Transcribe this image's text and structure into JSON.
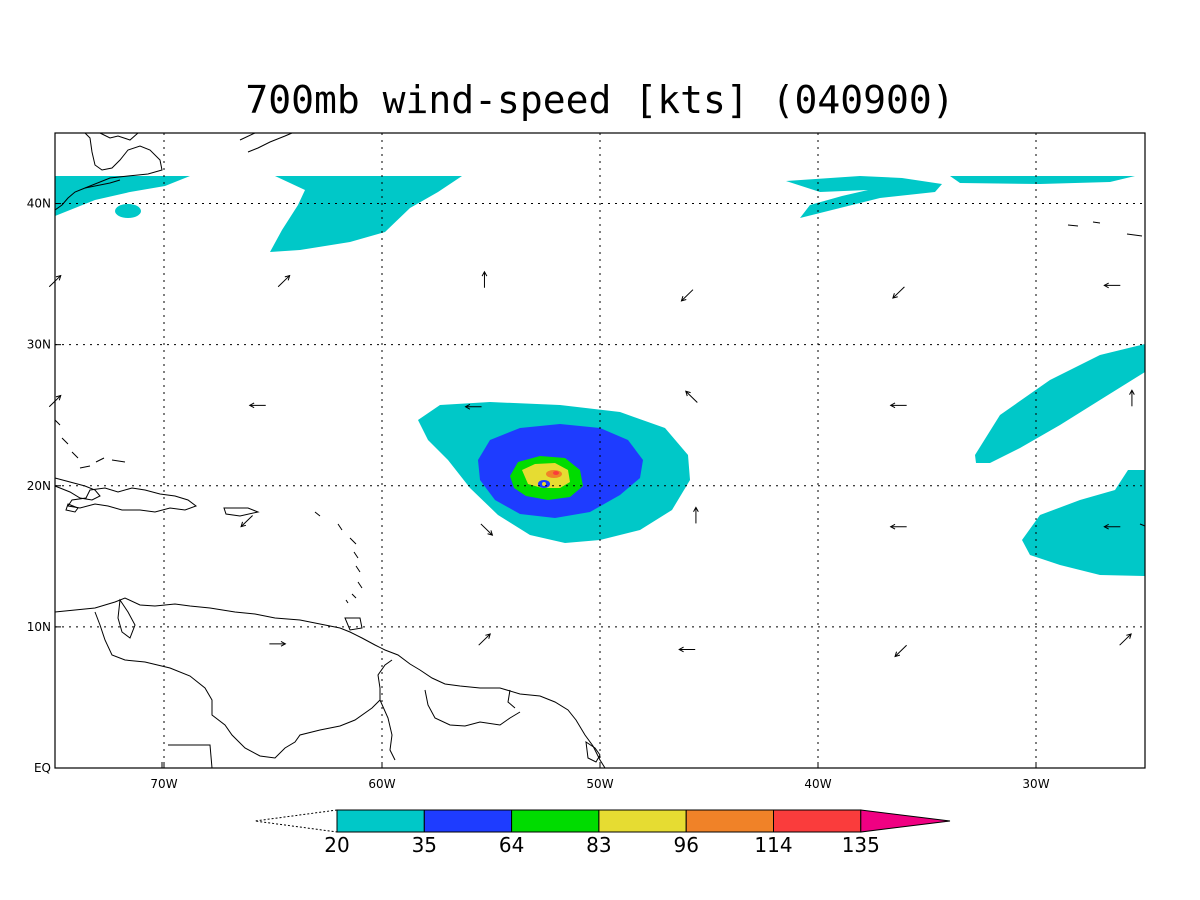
{
  "title": "700mb wind-speed [kts] (040900)",
  "map": {
    "lon_range": [
      -75,
      -25
    ],
    "lat_range": [
      0,
      45
    ],
    "grid": "dotted",
    "x_ticks": [
      {
        "lon": -70,
        "label": "70W"
      },
      {
        "lon": -60,
        "label": "60W"
      },
      {
        "lon": -50,
        "label": "50W"
      },
      {
        "lon": -40,
        "label": "40W"
      },
      {
        "lon": -30,
        "label": "30W"
      }
    ],
    "y_ticks": [
      {
        "lat": 0,
        "label": "EQ"
      },
      {
        "lat": 10,
        "label": "10N"
      },
      {
        "lat": 20,
        "label": "20N"
      },
      {
        "lat": 30,
        "label": "30N"
      },
      {
        "lat": 40,
        "label": "40N"
      }
    ]
  },
  "colorbar": {
    "levels": [
      "20",
      "35",
      "64",
      "83",
      "96",
      "114",
      "135"
    ],
    "colors": [
      "#00c8c8",
      "#1e3cff",
      "#00dc00",
      "#e6dc32",
      "#f08228",
      "#fa3c3c",
      "#f00082"
    ]
  },
  "wind_arrows": [
    {
      "lon": -75,
      "lat": 34.5,
      "dir": "NE"
    },
    {
      "lon": -64.5,
      "lat": 34.5,
      "dir": "NE"
    },
    {
      "lon": -55.3,
      "lat": 34.6,
      "dir": "N"
    },
    {
      "lon": -46,
      "lat": 33.5,
      "dir": "SW"
    },
    {
      "lon": -36.3,
      "lat": 33.7,
      "dir": "SW"
    },
    {
      "lon": -26.5,
      "lat": 34.2,
      "dir": "W"
    },
    {
      "lon": -75,
      "lat": 26,
      "dir": "NE"
    },
    {
      "lon": -65.7,
      "lat": 25.7,
      "dir": "W"
    },
    {
      "lon": -55.8,
      "lat": 25.6,
      "dir": "W"
    },
    {
      "lon": -45.8,
      "lat": 26.3,
      "dir": "NW"
    },
    {
      "lon": -36.3,
      "lat": 25.7,
      "dir": "W"
    },
    {
      "lon": -25.6,
      "lat": 26.2,
      "dir": "N"
    },
    {
      "lon": -66.2,
      "lat": 17.5,
      "dir": "SW"
    },
    {
      "lon": -55.2,
      "lat": 16.9,
      "dir": "SE"
    },
    {
      "lon": -45.6,
      "lat": 17.9,
      "dir": "N"
    },
    {
      "lon": -36.3,
      "lat": 17.1,
      "dir": "W"
    },
    {
      "lon": -26.5,
      "lat": 17.1,
      "dir": "W"
    },
    {
      "lon": -64.8,
      "lat": 8.8,
      "dir": "E"
    },
    {
      "lon": -55.3,
      "lat": 9.1,
      "dir": "NE"
    },
    {
      "lon": -46,
      "lat": 8.4,
      "dir": "W"
    },
    {
      "lon": -36.2,
      "lat": 8.3,
      "dir": "SW"
    },
    {
      "lon": -25.9,
      "lat": 9.1,
      "dir": "NE"
    }
  ]
}
